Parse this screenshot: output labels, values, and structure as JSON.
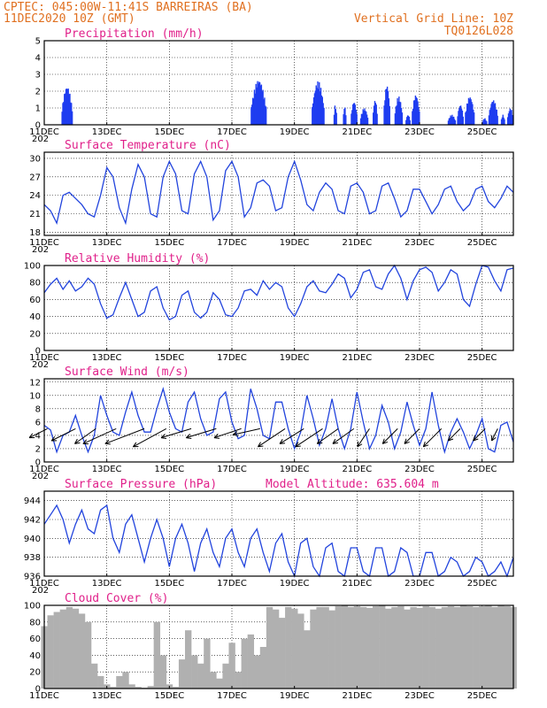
{
  "header": {
    "line1_left": "CPTEC:  045:00W-11:41S  BARREIRAS (BA)",
    "line2_left": "11DEC2020 10Z (GMT)",
    "line2_right": "Vertical Grid Line: 10Z",
    "line3_right": "TQ0126L028"
  },
  "x_axis": {
    "labels": [
      "11DEC",
      "13DEC",
      "15DEC",
      "17DEC",
      "19DEC",
      "21DEC",
      "23DEC",
      "25DEC"
    ],
    "under_label": "202"
  },
  "chart_data": [
    {
      "type": "bar",
      "title": "Precipitation  (mm/h)",
      "ylim": [
        0,
        5
      ],
      "yticks": [
        0,
        1,
        2,
        3,
        4,
        5
      ],
      "x_days": [
        0,
        15
      ],
      "events": [
        {
          "start": 0.55,
          "end": 0.9,
          "peak": 2.3
        },
        {
          "start": 6.6,
          "end": 7.1,
          "peak": 2.7
        },
        {
          "start": 8.55,
          "end": 8.95,
          "peak": 2.6
        },
        {
          "start": 9.25,
          "end": 9.35,
          "peak": 1.2
        },
        {
          "start": 9.55,
          "end": 9.65,
          "peak": 1.1
        },
        {
          "start": 9.8,
          "end": 10.0,
          "peak": 1.4
        },
        {
          "start": 10.1,
          "end": 10.35,
          "peak": 1.0
        },
        {
          "start": 10.5,
          "end": 10.65,
          "peak": 1.5
        },
        {
          "start": 10.85,
          "end": 11.05,
          "peak": 2.4
        },
        {
          "start": 11.2,
          "end": 11.45,
          "peak": 1.7
        },
        {
          "start": 11.55,
          "end": 11.7,
          "peak": 0.6
        },
        {
          "start": 11.75,
          "end": 12.0,
          "peak": 1.8
        },
        {
          "start": 12.9,
          "end": 13.15,
          "peak": 0.6
        },
        {
          "start": 13.2,
          "end": 13.4,
          "peak": 1.2
        },
        {
          "start": 13.45,
          "end": 13.75,
          "peak": 1.7
        },
        {
          "start": 14.0,
          "end": 14.15,
          "peak": 0.4
        },
        {
          "start": 14.2,
          "end": 14.5,
          "peak": 1.5
        },
        {
          "start": 14.6,
          "end": 14.72,
          "peak": 0.6
        },
        {
          "start": 14.8,
          "end": 15.0,
          "peak": 1.0
        }
      ]
    },
    {
      "type": "line",
      "title": "Surface Temperature (nC)",
      "ylim": [
        17.5,
        31
      ],
      "yticks": [
        18,
        21,
        24,
        27,
        30
      ],
      "x": [
        0,
        0.2,
        0.4,
        0.6,
        0.8,
        1.0,
        1.2,
        1.4,
        1.6,
        1.8,
        2.0,
        2.2,
        2.4,
        2.6,
        2.8,
        3.0,
        3.2,
        3.4,
        3.6,
        3.8,
        4.0,
        4.2,
        4.4,
        4.6,
        4.8,
        5.0,
        5.2,
        5.4,
        5.6,
        5.8,
        6.0,
        6.2,
        6.4,
        6.6,
        6.8,
        7.0,
        7.2,
        7.4,
        7.6,
        7.8,
        8.0,
        8.2,
        8.4,
        8.6,
        8.8,
        9.0,
        9.2,
        9.4,
        9.6,
        9.8,
        10.0,
        10.2,
        10.4,
        10.6,
        10.8,
        11.0,
        11.2,
        11.4,
        11.6,
        11.8,
        12.0,
        12.2,
        12.4,
        12.6,
        12.8,
        13.0,
        13.2,
        13.4,
        13.6,
        13.8,
        14.0,
        14.2,
        14.4,
        14.6,
        14.8,
        15.0
      ],
      "y": [
        22.5,
        21.5,
        19.5,
        24.0,
        24.5,
        23.5,
        22.5,
        21.0,
        20.5,
        24.0,
        28.5,
        27.0,
        22.0,
        19.5,
        25.0,
        29.0,
        27.0,
        21.0,
        20.5,
        27.0,
        29.5,
        27.5,
        21.5,
        21.0,
        27.5,
        29.5,
        27.0,
        20.0,
        21.5,
        28.0,
        29.5,
        27.0,
        20.5,
        22.0,
        26.0,
        26.5,
        25.5,
        21.5,
        22.0,
        27.0,
        29.5,
        26.5,
        22.5,
        21.5,
        24.5,
        26.0,
        25.0,
        21.5,
        21.0,
        25.5,
        26.0,
        24.5,
        21.0,
        21.5,
        25.5,
        26.0,
        23.5,
        20.5,
        21.5,
        25.0,
        25.0,
        23.0,
        21.0,
        22.5,
        25.0,
        25.5,
        23.0,
        21.5,
        22.5,
        25.0,
        25.5,
        23.0,
        22.0,
        23.5,
        25.5,
        24.5
      ]
    },
    {
      "type": "line",
      "title": "Relative Humidity  (%)",
      "ylim": [
        0,
        100
      ],
      "yticks": [
        0,
        20,
        40,
        60,
        80,
        100
      ],
      "x": [
        0,
        0.2,
        0.4,
        0.6,
        0.8,
        1.0,
        1.2,
        1.4,
        1.6,
        1.8,
        2.0,
        2.2,
        2.4,
        2.6,
        2.8,
        3.0,
        3.2,
        3.4,
        3.6,
        3.8,
        4.0,
        4.2,
        4.4,
        4.6,
        4.8,
        5.0,
        5.2,
        5.4,
        5.6,
        5.8,
        6.0,
        6.2,
        6.4,
        6.6,
        6.8,
        7.0,
        7.2,
        7.4,
        7.6,
        7.8,
        8.0,
        8.2,
        8.4,
        8.6,
        8.8,
        9.0,
        9.2,
        9.4,
        9.6,
        9.8,
        10.0,
        10.2,
        10.4,
        10.6,
        10.8,
        11.0,
        11.2,
        11.4,
        11.6,
        11.8,
        12.0,
        12.2,
        12.4,
        12.6,
        12.8,
        13.0,
        13.2,
        13.4,
        13.6,
        13.8,
        14.0,
        14.2,
        14.4,
        14.6,
        14.8,
        15.0
      ],
      "y": [
        68,
        78,
        85,
        72,
        82,
        70,
        75,
        85,
        78,
        55,
        38,
        42,
        62,
        80,
        60,
        40,
        45,
        70,
        75,
        50,
        36,
        40,
        65,
        70,
        45,
        38,
        45,
        68,
        60,
        42,
        40,
        50,
        70,
        72,
        65,
        82,
        72,
        80,
        75,
        50,
        40,
        55,
        75,
        82,
        70,
        68,
        78,
        90,
        85,
        62,
        72,
        92,
        95,
        75,
        72,
        90,
        100,
        85,
        60,
        82,
        95,
        98,
        92,
        70,
        80,
        95,
        90,
        60,
        52,
        78,
        100,
        98,
        82,
        70,
        95,
        97
      ]
    },
    {
      "type": "line",
      "title": "Surface Wind  (m/s)",
      "ylim": [
        0,
        12.5
      ],
      "yticks": [
        0,
        2,
        4,
        6,
        8,
        10,
        12
      ],
      "x": [
        0,
        0.2,
        0.4,
        0.6,
        0.8,
        1.0,
        1.2,
        1.4,
        1.6,
        1.8,
        2.0,
        2.2,
        2.4,
        2.6,
        2.8,
        3.0,
        3.2,
        3.4,
        3.6,
        3.8,
        4.0,
        4.2,
        4.4,
        4.6,
        4.8,
        5.0,
        5.2,
        5.4,
        5.6,
        5.8,
        6.0,
        6.2,
        6.4,
        6.6,
        6.8,
        7.0,
        7.2,
        7.4,
        7.6,
        7.8,
        8.0,
        8.2,
        8.4,
        8.6,
        8.8,
        9.0,
        9.2,
        9.4,
        9.6,
        9.8,
        10.0,
        10.2,
        10.4,
        10.6,
        10.8,
        11.0,
        11.2,
        11.4,
        11.6,
        11.8,
        12.0,
        12.2,
        12.4,
        12.6,
        12.8,
        13.0,
        13.2,
        13.4,
        13.6,
        13.8,
        14.0,
        14.2,
        14.4,
        14.6,
        14.8,
        15.0
      ],
      "y": [
        5.5,
        4.8,
        1.5,
        4.0,
        4.5,
        7.0,
        4.0,
        1.5,
        4.0,
        10.0,
        7.0,
        4.5,
        4.0,
        7.5,
        10.5,
        7.0,
        4.5,
        4.5,
        8.0,
        11.0,
        7.5,
        5.0,
        4.5,
        9.0,
        10.5,
        6.5,
        4.0,
        4.5,
        9.5,
        10.5,
        6.0,
        3.5,
        4.0,
        11.0,
        8.0,
        4.0,
        3.5,
        9.0,
        9.0,
        5.0,
        2.0,
        4.5,
        10.0,
        6.5,
        2.5,
        5.0,
        9.5,
        5.0,
        2.0,
        5.0,
        10.5,
        6.0,
        2.0,
        4.0,
        8.5,
        6.0,
        2.0,
        4.5,
        9.0,
        5.5,
        2.5,
        5.0,
        10.5,
        5.5,
        1.5,
        4.5,
        6.5,
        4.5,
        2.0,
        4.0,
        6.5,
        2.0,
        1.5,
        5.5,
        6.0,
        3.0
      ]
    },
    {
      "type": "line",
      "title": "Surface Pressure (hPa)",
      "annotation": "Model Altitude: 635.604 m",
      "ylim": [
        936,
        945
      ],
      "yticks": [
        936,
        938,
        940,
        942,
        944
      ],
      "x": [
        0,
        0.2,
        0.4,
        0.6,
        0.8,
        1.0,
        1.2,
        1.4,
        1.6,
        1.8,
        2.0,
        2.2,
        2.4,
        2.6,
        2.8,
        3.0,
        3.2,
        3.4,
        3.6,
        3.8,
        4.0,
        4.2,
        4.4,
        4.6,
        4.8,
        5.0,
        5.2,
        5.4,
        5.6,
        5.8,
        6.0,
        6.2,
        6.4,
        6.6,
        6.8,
        7.0,
        7.2,
        7.4,
        7.6,
        7.8,
        8.0,
        8.2,
        8.4,
        8.6,
        8.8,
        9.0,
        9.2,
        9.4,
        9.6,
        9.8,
        10.0,
        10.2,
        10.4,
        10.6,
        10.8,
        11.0,
        11.2,
        11.4,
        11.6,
        11.8,
        12.0,
        12.2,
        12.4,
        12.6,
        12.8,
        13.0,
        13.2,
        13.4,
        13.6,
        13.8,
        14.0,
        14.2,
        14.4,
        14.6,
        14.8,
        15.0
      ],
      "y": [
        941.5,
        942.5,
        943.5,
        942.0,
        939.5,
        941.5,
        943.0,
        941.0,
        940.5,
        943.0,
        943.5,
        940.0,
        938.5,
        941.5,
        942.5,
        940.0,
        937.5,
        940.0,
        942.0,
        940.0,
        937.0,
        940.0,
        941.5,
        939.5,
        936.5,
        939.5,
        941.0,
        938.5,
        937.0,
        940.0,
        941.0,
        938.5,
        937.0,
        940.0,
        941.0,
        938.5,
        936.5,
        939.5,
        940.5,
        937.5,
        936.0,
        939.5,
        940.0,
        937.0,
        936.0,
        939.0,
        939.5,
        936.5,
        936.0,
        939.0,
        939.0,
        936.5,
        936.0,
        939.0,
        939.0,
        936.0,
        936.5,
        939.0,
        938.5,
        936.0,
        936.0,
        938.5,
        938.5,
        936.0,
        936.5,
        938.0,
        937.5,
        936.0,
        936.5,
        938.0,
        937.5,
        936.0,
        936.5,
        937.5,
        936.0,
        938.0
      ]
    },
    {
      "type": "bar",
      "title": "Cloud Cover  (%)",
      "ylim": [
        0,
        100
      ],
      "yticks": [
        0,
        20,
        40,
        60,
        80,
        100
      ],
      "x": [
        0,
        0.2,
        0.4,
        0.6,
        0.8,
        1.0,
        1.2,
        1.4,
        1.6,
        1.8,
        2.0,
        2.2,
        2.4,
        2.6,
        2.8,
        3.0,
        3.2,
        3.4,
        3.6,
        3.8,
        4.0,
        4.2,
        4.4,
        4.6,
        4.8,
        5.0,
        5.2,
        5.4,
        5.6,
        5.8,
        6.0,
        6.2,
        6.4,
        6.6,
        6.8,
        7.0,
        7.2,
        7.4,
        7.6,
        7.8,
        8.0,
        8.2,
        8.4,
        8.6,
        8.8,
        9.0,
        9.2,
        9.4,
        9.6,
        9.8,
        10.0,
        10.2,
        10.4,
        10.6,
        10.8,
        11.0,
        11.2,
        11.4,
        11.6,
        11.8,
        12.0,
        12.2,
        12.4,
        12.6,
        12.8,
        13.0,
        13.2,
        13.4,
        13.6,
        13.8,
        14.0,
        14.2,
        14.4,
        14.6,
        14.8,
        15.0
      ],
      "y": [
        75,
        88,
        92,
        95,
        98,
        96,
        90,
        80,
        30,
        15,
        5,
        2,
        15,
        20,
        5,
        2,
        1,
        3,
        80,
        40,
        5,
        2,
        35,
        70,
        40,
        30,
        60,
        20,
        12,
        30,
        55,
        20,
        60,
        65,
        40,
        50,
        98,
        95,
        85,
        98,
        96,
        90,
        70,
        95,
        98,
        98,
        94,
        99,
        100,
        98,
        99,
        98,
        97,
        99,
        100,
        96,
        98,
        99,
        95,
        98,
        97,
        99,
        98,
        96,
        98,
        99,
        98,
        100,
        99,
        98,
        99,
        100,
        98,
        100,
        99,
        98
      ]
    }
  ],
  "wind_vectors": {
    "x": [
      0.1,
      1.0,
      1.65,
      2.3,
      3.2,
      3.9,
      4.7,
      5.5,
      6.3,
      6.9,
      7.7,
      8.3,
      8.9,
      9.4,
      9.9,
      10.4,
      11.3,
      12.0,
      12.7,
      13.3,
      14.1,
      14.5
    ],
    "u": [
      -0.6,
      -0.8,
      -0.7,
      -1.1,
      -1.3,
      -1.1,
      -1.0,
      -1.0,
      -0.9,
      -0.9,
      -0.9,
      -0.8,
      -0.9,
      -0.7,
      -0.7,
      -0.4,
      -0.5,
      -0.5,
      -0.6,
      -0.4,
      -0.4,
      -0.2
    ],
    "v": [
      0.3,
      0.4,
      0.5,
      0.5,
      0.5,
      0.6,
      0.3,
      0.3,
      0.3,
      0.2,
      0.6,
      0.5,
      0.6,
      0.5,
      0.5,
      0.6,
      0.5,
      0.5,
      0.6,
      0.4,
      0.4,
      0.4
    ],
    "y_level": 5.0
  }
}
